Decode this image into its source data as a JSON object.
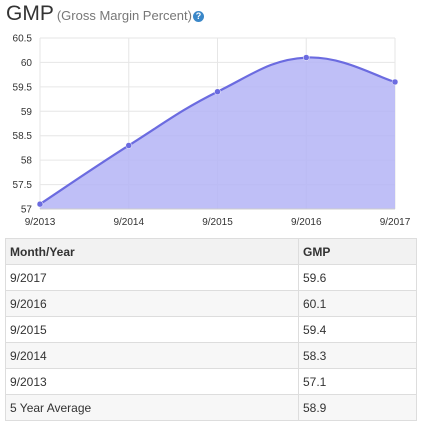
{
  "header": {
    "title": "GMP",
    "subtitle": "(Gross Margin Percent)",
    "help_icon": "question-circle-icon"
  },
  "chart_data": {
    "type": "area",
    "categories": [
      "9/2013",
      "9/2014",
      "9/2015",
      "9/2016",
      "9/2017"
    ],
    "values": [
      57.1,
      58.3,
      59.4,
      60.1,
      59.6
    ],
    "yticks": [
      57,
      57.5,
      58,
      58.5,
      59,
      59.5,
      60,
      60.5
    ],
    "ylim": [
      57,
      60.5
    ],
    "grid": true,
    "legend": "none",
    "colors": {
      "line": "#6b6be0",
      "fill": "#b4b4f6",
      "grid": "#e6e6e6"
    }
  },
  "table": {
    "headers": [
      "Month/Year",
      "GMP"
    ],
    "rows": [
      [
        "9/2017",
        "59.6"
      ],
      [
        "9/2016",
        "60.1"
      ],
      [
        "9/2015",
        "59.4"
      ],
      [
        "9/2014",
        "58.3"
      ],
      [
        "9/2013",
        "57.1"
      ],
      [
        "5 Year Average",
        "58.9"
      ]
    ]
  }
}
